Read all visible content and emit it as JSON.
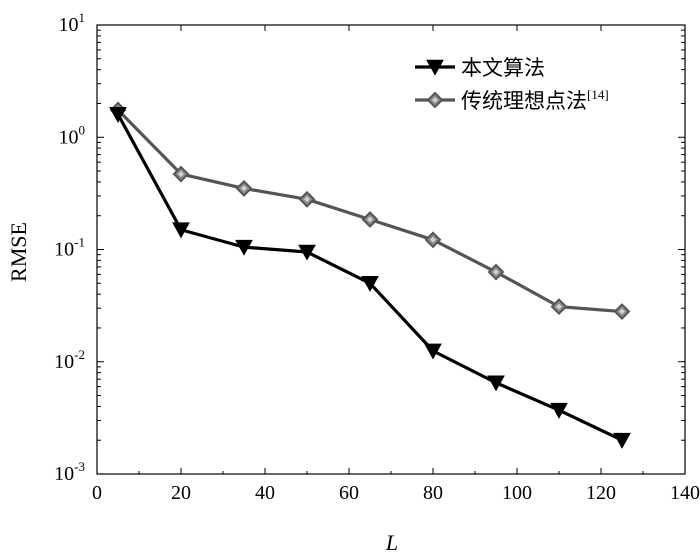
{
  "chart_data": {
    "type": "line",
    "xlabel": "L",
    "ylabel": "RMSE",
    "xlim": [
      0,
      140
    ],
    "ylim": [
      0.001,
      10
    ],
    "yscale": "log",
    "grid": false,
    "legend_position": "top-right",
    "x_ticks": [
      "0",
      "20",
      "40",
      "60",
      "80",
      "100",
      "120",
      "140"
    ],
    "y_ticks": [
      {
        "base": "10",
        "exp": "-3",
        "value": 0.001
      },
      {
        "base": "10",
        "exp": "-2",
        "value": 0.01
      },
      {
        "base": "10",
        "exp": "-1",
        "value": 0.1
      },
      {
        "base": "10",
        "exp": "0",
        "value": 1
      },
      {
        "base": "10",
        "exp": "1",
        "value": 10
      }
    ],
    "x": [
      5,
      20,
      35,
      50,
      65,
      80,
      95,
      110,
      125
    ],
    "series": [
      {
        "name": "本文算法",
        "ref": "",
        "color": "#000000",
        "marker": "triangle-down",
        "values": [
          1.6,
          0.15,
          0.105,
          0.095,
          0.05,
          0.0125,
          0.0065,
          0.0037,
          0.002
        ]
      },
      {
        "name": "传统理想点法",
        "ref": "[14]",
        "color": "#555555",
        "marker": "diamond",
        "values": [
          1.75,
          0.47,
          0.35,
          0.28,
          0.185,
          0.122,
          0.063,
          0.031,
          0.028
        ]
      }
    ]
  }
}
